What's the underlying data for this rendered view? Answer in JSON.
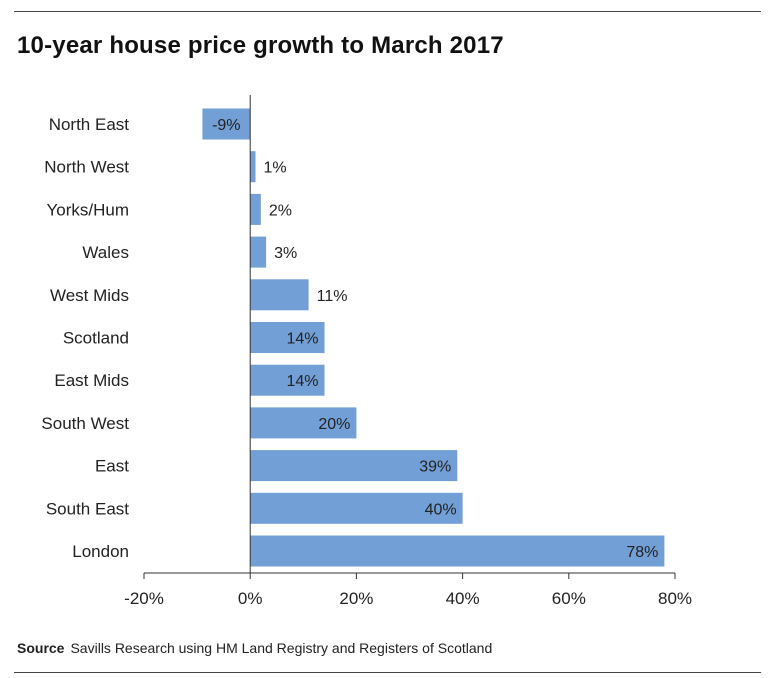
{
  "title": "10-year house price growth to March 2017",
  "source": {
    "label": "Source",
    "text": "Savills Research using HM Land Registry and Registers of Scotland"
  },
  "chart_data": {
    "type": "bar",
    "orientation": "horizontal",
    "categories": [
      "North East",
      "North West",
      "Yorks/Hum",
      "Wales",
      "West Mids",
      "Scotland",
      "East Mids",
      "South West",
      "East",
      "South East",
      "London"
    ],
    "values": [
      -9,
      1,
      2,
      3,
      11,
      14,
      14,
      20,
      39,
      40,
      78
    ],
    "data_labels": [
      "-9%",
      "1%",
      "2%",
      "3%",
      "11%",
      "14%",
      "14%",
      "20%",
      "39%",
      "40%",
      "78%"
    ],
    "xlim": [
      -20,
      80
    ],
    "x_ticks": [
      -20,
      0,
      20,
      40,
      60,
      80
    ],
    "x_tick_labels": [
      "-20%",
      "0%",
      "20%",
      "40%",
      "60%",
      "80%"
    ],
    "bar_color": "#729fd5",
    "grid": false
  }
}
